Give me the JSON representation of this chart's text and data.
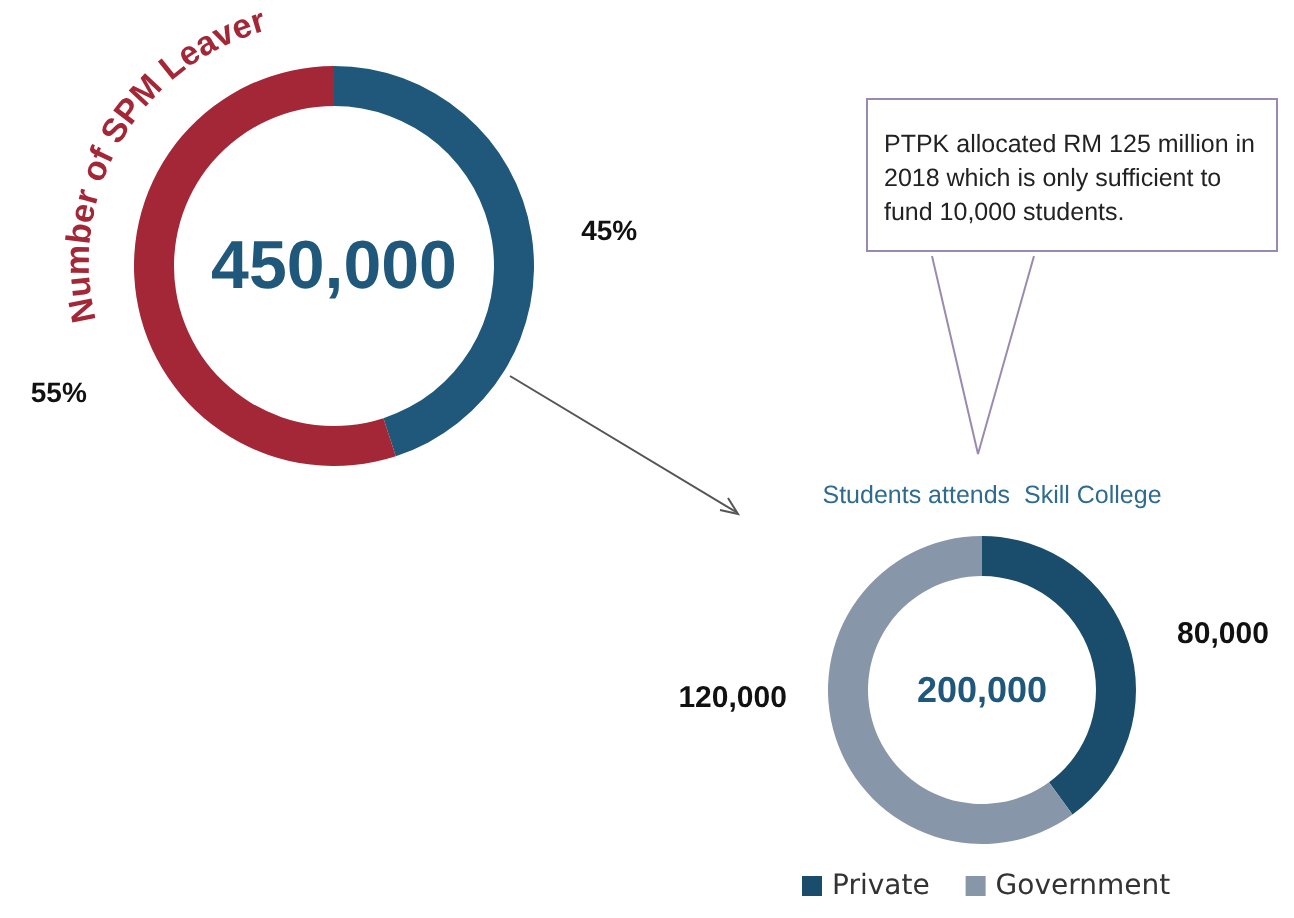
{
  "chart_data": [
    {
      "type": "donut",
      "title": "Number of SPM Leaver",
      "categories": [
        null,
        null
      ],
      "values": [
        45,
        55
      ],
      "colors": [
        "#1f587a",
        "#a32737"
      ],
      "value_labels": [
        "45%",
        "55%"
      ],
      "annotations": [
        "450,000"
      ]
    },
    {
      "type": "donut",
      "title": "Students attends  Skill College",
      "categories": [
        "Private",
        "Government"
      ],
      "values": [
        80000,
        120000
      ],
      "colors": [
        "#1a4d6b",
        "#8796a8"
      ],
      "value_labels": [
        "80,000",
        "120,000"
      ],
      "legend": "bottom",
      "annotations": [
        "200,000",
        "PTPK allocated RM 125 million in 2018 which is only sufficient to fund 10,000 students."
      ]
    }
  ]
}
